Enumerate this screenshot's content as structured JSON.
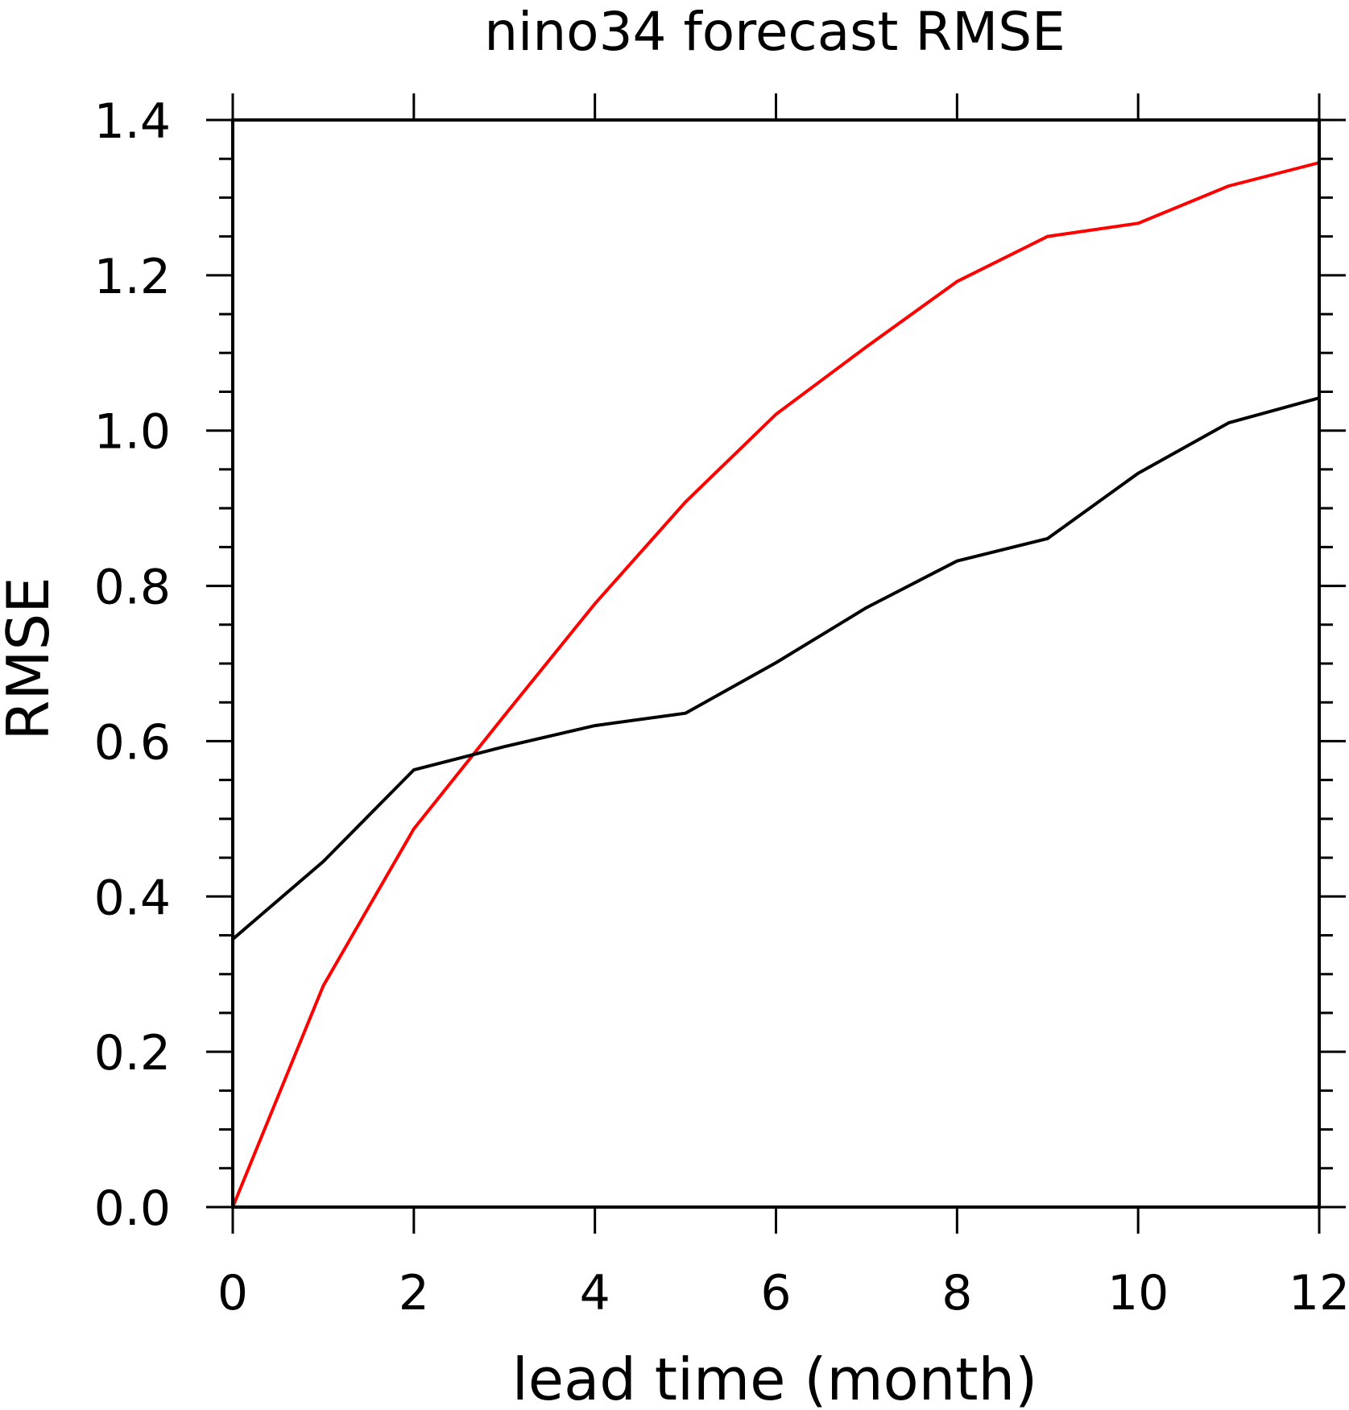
{
  "chart_data": {
    "type": "line",
    "title": "nino34 forecast RMSE",
    "xlabel": "lead time (month)",
    "ylabel": "RMSE",
    "xlim": [
      0,
      12
    ],
    "ylim": [
      0,
      1.4
    ],
    "x_ticks": [
      0,
      2,
      4,
      6,
      8,
      10,
      12
    ],
    "x_tick_labels": [
      "0",
      "2",
      "4",
      "6",
      "8",
      "10",
      "12"
    ],
    "y_ticks": [
      0,
      0.2,
      0.4,
      0.6,
      0.8,
      1.0,
      1.2,
      1.4
    ],
    "y_tick_labels": [
      "0.0",
      "0.2",
      "0.4",
      "0.6",
      "0.8",
      "1.0",
      "1.2",
      "1.4"
    ],
    "y_minor_step": 0.05,
    "grid": false,
    "legend": false,
    "x": [
      0,
      1,
      2,
      3,
      4,
      5,
      6,
      7,
      8,
      9,
      10,
      11,
      12
    ],
    "series": [
      {
        "color": "#ff0000",
        "values": [
          0.0,
          0.285,
          0.487,
          0.633,
          0.777,
          0.908,
          1.021,
          1.108,
          1.192,
          1.25,
          1.267,
          1.315,
          1.345
        ]
      },
      {
        "color": "#000000",
        "values": [
          0.345,
          0.445,
          0.563,
          0.593,
          0.62,
          0.636,
          0.701,
          0.772,
          0.832,
          0.861,
          0.945,
          1.01,
          1.042
        ]
      }
    ]
  }
}
